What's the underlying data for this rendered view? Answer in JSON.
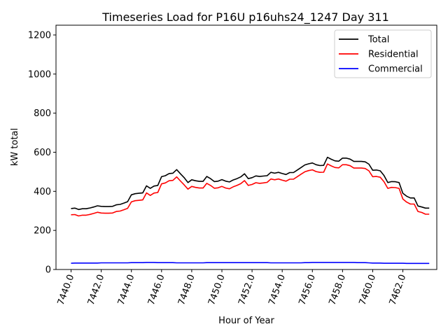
{
  "chart_data": {
    "type": "line",
    "title": "Timeseries Load for P16U p16uhs24_1247  Day 311",
    "xlabel": "Hour of Year",
    "ylabel": "kW total",
    "xlim": [
      7439.0,
      7464.25
    ],
    "ylim": [
      0,
      1250
    ],
    "x_ticks": [
      7440,
      7442,
      7444,
      7446,
      7448,
      7450,
      7452,
      7454,
      7456,
      7458,
      7460,
      7462
    ],
    "x_tick_labels": [
      "7440.0",
      "7442.0",
      "7444.0",
      "7446.0",
      "7448.0",
      "7450.0",
      "7452.0",
      "7454.0",
      "7456.0",
      "7458.0",
      "7460.0",
      "7462.0"
    ],
    "y_ticks": [
      0,
      200,
      400,
      600,
      800,
      1000,
      1200
    ],
    "y_tick_labels": [
      "0",
      "200",
      "400",
      "600",
      "800",
      "1000",
      "1200"
    ],
    "legend_position": "top-right",
    "x": [
      7440.0,
      7440.25,
      7440.5,
      7440.75,
      7441.0,
      7441.25,
      7441.5,
      7441.75,
      7442.0,
      7442.25,
      7442.5,
      7442.75,
      7443.0,
      7443.25,
      7443.5,
      7443.75,
      7444.0,
      7444.25,
      7444.5,
      7444.75,
      7445.0,
      7445.25,
      7445.5,
      7445.75,
      7446.0,
      7446.25,
      7446.5,
      7446.75,
      7447.0,
      7447.25,
      7447.5,
      7447.75,
      7448.0,
      7448.25,
      7448.5,
      7448.75,
      7449.0,
      7449.25,
      7449.5,
      7449.75,
      7450.0,
      7450.25,
      7450.5,
      7450.75,
      7451.0,
      7451.25,
      7451.5,
      7451.75,
      7452.0,
      7452.25,
      7452.5,
      7452.75,
      7453.0,
      7453.25,
      7453.5,
      7453.75,
      7454.0,
      7454.25,
      7454.5,
      7454.75,
      7455.0,
      7455.25,
      7455.5,
      7455.75,
      7456.0,
      7456.25,
      7456.5,
      7456.75,
      7457.0,
      7457.25,
      7457.5,
      7457.75,
      7458.0,
      7458.25,
      7458.5,
      7458.75,
      7459.0,
      7459.25,
      7459.5,
      7459.75,
      7460.0,
      7460.25,
      7460.5,
      7460.75,
      7461.0,
      7461.25,
      7461.5,
      7461.75,
      7462.0,
      7462.25,
      7462.5,
      7462.75,
      7463.0,
      7463.25,
      7463.5,
      7463.75
    ],
    "series": [
      {
        "name": "Total",
        "color": "#000000",
        "values": [
          312,
          314,
          307,
          311,
          311,
          315,
          320,
          326,
          323,
          322,
          322,
          323,
          331,
          333,
          340,
          347,
          382,
          388,
          390,
          392,
          428,
          415,
          427,
          430,
          475,
          480,
          491,
          493,
          511,
          490,
          470,
          445,
          459,
          454,
          451,
          451,
          476,
          465,
          450,
          452,
          460,
          452,
          448,
          458,
          465,
          474,
          490,
          465,
          470,
          479,
          476,
          478,
          480,
          497,
          493,
          497,
          491,
          486,
          496,
          496,
          509,
          522,
          535,
          541,
          545,
          536,
          532,
          533,
          574,
          564,
          556,
          554,
          570,
          570,
          565,
          553,
          553,
          553,
          551,
          539,
          508,
          509,
          505,
          481,
          445,
          450,
          449,
          445,
          390,
          375,
          366,
          366,
          325,
          320,
          314,
          314
        ]
      },
      {
        "name": "Residential",
        "color": "#ff0000",
        "values": [
          280,
          281,
          274,
          278,
          278,
          282,
          287,
          293,
          289,
          288,
          288,
          289,
          297,
          299,
          306,
          313,
          346,
          352,
          354,
          356,
          392,
          379,
          391,
          394,
          438,
          443,
          454,
          456,
          474,
          453,
          433,
          411,
          425,
          420,
          417,
          417,
          441,
          430,
          416,
          418,
          425,
          417,
          413,
          423,
          430,
          439,
          455,
          430,
          435,
          444,
          441,
          443,
          446,
          463,
          459,
          463,
          457,
          452,
          462,
          462,
          475,
          488,
          500,
          506,
          510,
          501,
          497,
          498,
          540,
          530,
          522,
          520,
          536,
          536,
          531,
          519,
          519,
          519,
          517,
          505,
          475,
          476,
          472,
          449,
          415,
          420,
          419,
          415,
          361,
          345,
          335,
          335,
          297,
          292,
          283,
          283
        ]
      },
      {
        "name": "Commercial",
        "color": "#0000ff",
        "values": [
          32,
          33,
          33,
          33,
          33,
          33,
          33,
          33,
          34,
          34,
          34,
          34,
          34,
          34,
          34,
          34,
          35,
          35,
          35,
          35,
          36,
          36,
          36,
          35,
          35,
          35,
          35,
          35,
          34,
          34,
          34,
          34,
          34,
          34,
          34,
          34,
          35,
          35,
          35,
          35,
          35,
          35,
          35,
          35,
          35,
          35,
          35,
          35,
          35,
          35,
          35,
          35,
          35,
          34,
          34,
          34,
          34,
          34,
          34,
          34,
          34,
          34,
          35,
          35,
          36,
          36,
          36,
          36,
          36,
          36,
          36,
          36,
          36,
          36,
          36,
          36,
          35,
          35,
          35,
          34,
          33,
          33,
          33,
          32,
          32,
          32,
          32,
          32,
          32,
          31,
          31,
          31,
          31,
          31,
          31,
          31
        ]
      }
    ]
  }
}
